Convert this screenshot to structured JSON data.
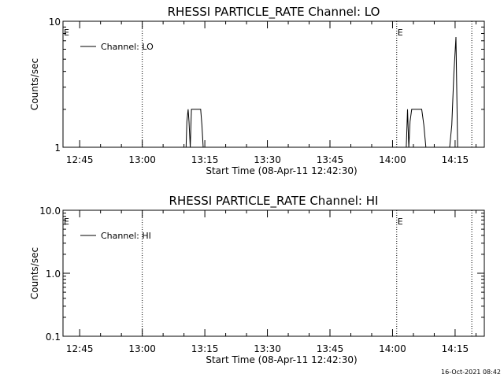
{
  "footer_timestamp": "16-Oct-2021 08:42",
  "chart_data": [
    {
      "type": "line",
      "title": "RHESSI PARTICLE_RATE Channel: LO",
      "xlabel": "Start Time (08-Apr-11 12:42:30)",
      "ylabel": "Counts/sec",
      "yscale": "log",
      "ylim": [
        1,
        10
      ],
      "xlim": [
        "12:41",
        "14:22"
      ],
      "x_ticks": [
        "12:45",
        "13:00",
        "13:15",
        "13:30",
        "13:45",
        "14:00",
        "14:15"
      ],
      "y_ticks": [
        "1",
        "10"
      ],
      "legend": {
        "label": "Channel: LO",
        "position": "top-left"
      },
      "event_marker_label": "E",
      "event_lines": [
        "13:00",
        "14:01",
        "14:19"
      ],
      "series": [
        {
          "name": "Channel: LO",
          "x": [
            "13:10.5",
            "13:10.7",
            "13:11.0",
            "13:11.2",
            "13:11.5",
            "13:11.8",
            "13:12.0",
            "13:12.3",
            "13:13.0",
            "13:14.0",
            "13:14.3",
            "13:14.6",
            "14:03.3",
            "14:03.6",
            "14:03.9",
            "14:04.2",
            "14:04.6",
            "14:05.0",
            "14:07.0",
            "14:07.5",
            "14:08.0",
            "14:13.7",
            "14:14.2",
            "14:14.7",
            "14:15.2",
            "14:15.6"
          ],
          "values": [
            1,
            1.6,
            2,
            1.6,
            1,
            2,
            2,
            2,
            2,
            2,
            1.5,
            1,
            1,
            2,
            1,
            1.6,
            2,
            2,
            2,
            1.5,
            1,
            1,
            1.5,
            3.8,
            7.5,
            1
          ]
        }
      ]
    },
    {
      "type": "line",
      "title": "RHESSI PARTICLE_RATE Channel: HI",
      "xlabel": "Start Time (08-Apr-11 12:42:30)",
      "ylabel": "Counts/sec",
      "yscale": "log",
      "ylim": [
        0.1,
        10
      ],
      "xlim": [
        "12:41",
        "14:22"
      ],
      "x_ticks": [
        "12:45",
        "13:00",
        "13:15",
        "13:30",
        "13:45",
        "14:00",
        "14:15"
      ],
      "y_ticks": [
        "0.1",
        "1.0",
        "10.0"
      ],
      "legend": {
        "label": "Channel: HI",
        "position": "top-left"
      },
      "event_marker_label": "E",
      "event_lines": [
        "13:00",
        "14:01",
        "14:19"
      ],
      "series": [
        {
          "name": "Channel: HI",
          "x": [],
          "values": []
        }
      ]
    }
  ]
}
